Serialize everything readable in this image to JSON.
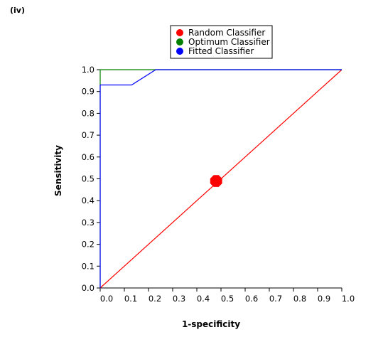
{
  "panel_label": "(iv)",
  "chart_data": {
    "type": "line",
    "xlabel": "1-specificity",
    "ylabel": "Sensitivity",
    "xlim": [
      0.0,
      1.0
    ],
    "ylim": [
      0.0,
      1.0
    ],
    "x_ticks": [
      "0.0",
      "0.1",
      "0.2",
      "0.3",
      "0.4",
      "0.5",
      "0.6",
      "0.7",
      "0.8",
      "0.9",
      "1.0"
    ],
    "y_ticks": [
      "0.0",
      "0.1",
      "0.2",
      "0.3",
      "0.4",
      "0.5",
      "0.6",
      "0.7",
      "0.8",
      "0.9",
      "1.0"
    ],
    "grid": false,
    "legend_position": "top-center",
    "series": [
      {
        "name": "Random Classifier",
        "color": "#ff0000",
        "x": [
          0.0,
          1.0
        ],
        "y": [
          0.0,
          1.0
        ],
        "marker_point": [
          0.48,
          0.49
        ]
      },
      {
        "name": "Optimum Classifier",
        "color": "#008000",
        "x": [
          0.0,
          0.0,
          1.0
        ],
        "y": [
          0.0,
          1.0,
          1.0
        ]
      },
      {
        "name": "Fitted Classifier",
        "color": "#0000ff",
        "x": [
          0.0,
          0.0,
          0.13,
          0.23,
          1.0
        ],
        "y": [
          0.0,
          0.93,
          0.93,
          1.0,
          1.0
        ]
      }
    ]
  }
}
